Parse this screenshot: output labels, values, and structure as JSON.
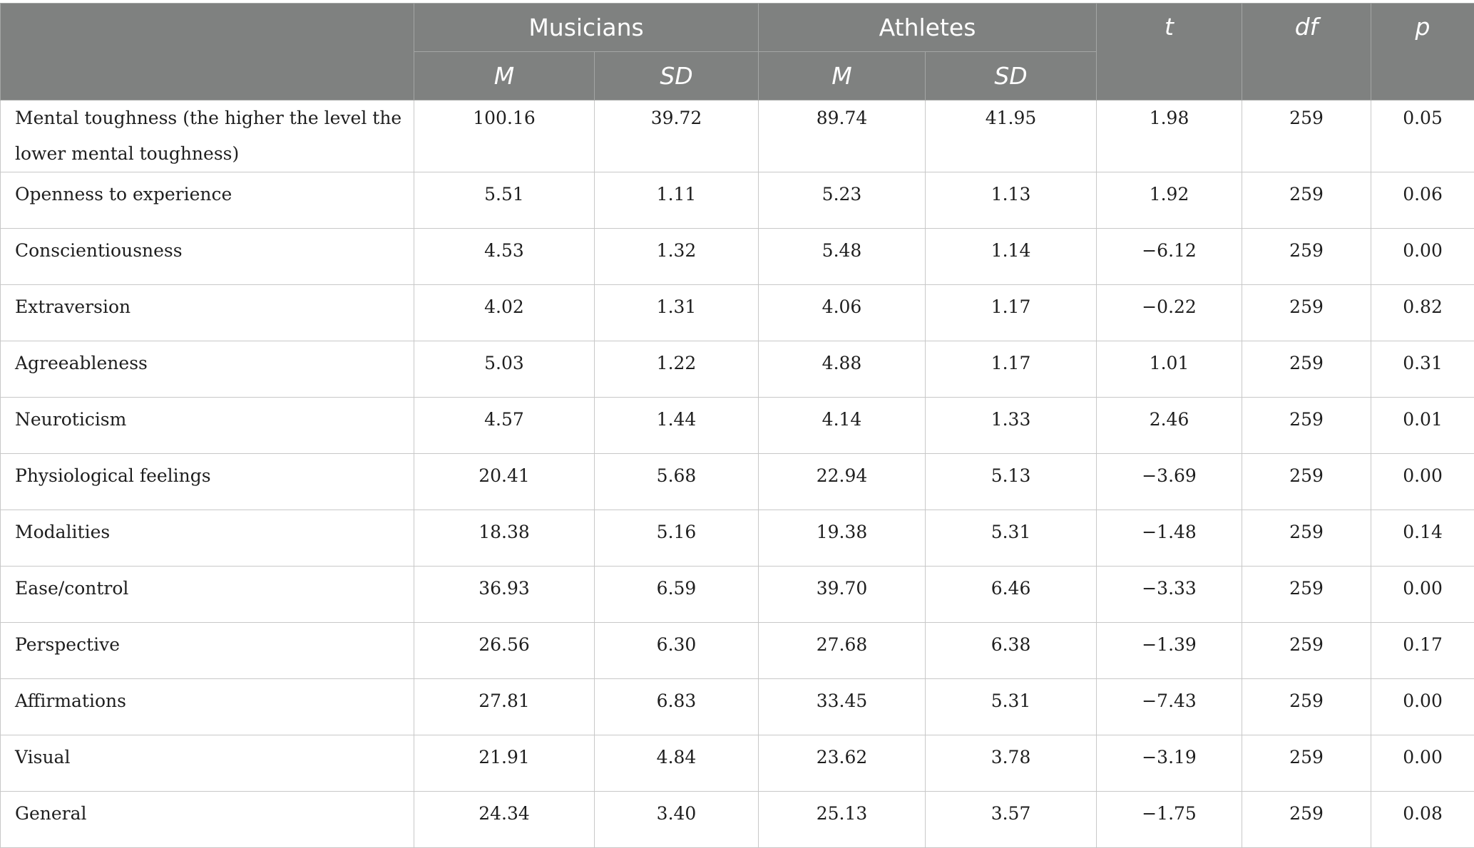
{
  "header": {
    "group_musicians": "Musicians",
    "group_athletes": "Athletes",
    "col_t": "t",
    "col_df": "df",
    "col_p": "p",
    "col_m": "M",
    "col_sd": "SD"
  },
  "rows": [
    {
      "label": "Mental toughness (the higher the level the lower mental toughness)",
      "mus_m": "100.16",
      "mus_sd": "39.72",
      "ath_m": "89.74",
      "ath_sd": "41.95",
      "t": "1.98",
      "df": "259",
      "p": "0.05"
    },
    {
      "label": "Openness to experience",
      "mus_m": "5.51",
      "mus_sd": "1.11",
      "ath_m": "5.23",
      "ath_sd": "1.13",
      "t": "1.92",
      "df": "259",
      "p": "0.06"
    },
    {
      "label": "Conscientiousness",
      "mus_m": "4.53",
      "mus_sd": "1.32",
      "ath_m": "5.48",
      "ath_sd": "1.14",
      "t": "−6.12",
      "df": "259",
      "p": "0.00"
    },
    {
      "label": "Extraversion",
      "mus_m": "4.02",
      "mus_sd": "1.31",
      "ath_m": "4.06",
      "ath_sd": "1.17",
      "t": "−0.22",
      "df": "259",
      "p": "0.82"
    },
    {
      "label": "Agreeableness",
      "mus_m": "5.03",
      "mus_sd": "1.22",
      "ath_m": "4.88",
      "ath_sd": "1.17",
      "t": "1.01",
      "df": "259",
      "p": "0.31"
    },
    {
      "label": "Neuroticism",
      "mus_m": "4.57",
      "mus_sd": "1.44",
      "ath_m": "4.14",
      "ath_sd": "1.33",
      "t": "2.46",
      "df": "259",
      "p": "0.01"
    },
    {
      "label": "Physiological feelings",
      "mus_m": "20.41",
      "mus_sd": "5.68",
      "ath_m": "22.94",
      "ath_sd": "5.13",
      "t": "−3.69",
      "df": "259",
      "p": "0.00"
    },
    {
      "label": "Modalities",
      "mus_m": "18.38",
      "mus_sd": "5.16",
      "ath_m": "19.38",
      "ath_sd": "5.31",
      "t": "−1.48",
      "df": "259",
      "p": "0.14"
    },
    {
      "label": "Ease/control",
      "mus_m": "36.93",
      "mus_sd": "6.59",
      "ath_m": "39.70",
      "ath_sd": "6.46",
      "t": "−3.33",
      "df": "259",
      "p": "0.00"
    },
    {
      "label": "Perspective",
      "mus_m": "26.56",
      "mus_sd": "6.30",
      "ath_m": "27.68",
      "ath_sd": "6.38",
      "t": "−1.39",
      "df": "259",
      "p": "0.17"
    },
    {
      "label": "Affirmations",
      "mus_m": "27.81",
      "mus_sd": "6.83",
      "ath_m": "33.45",
      "ath_sd": "5.31",
      "t": "−7.43",
      "df": "259",
      "p": "0.00"
    },
    {
      "label": "Visual",
      "mus_m": "21.91",
      "mus_sd": "4.84",
      "ath_m": "23.62",
      "ath_sd": "3.78",
      "t": "−3.19",
      "df": "259",
      "p": "0.00"
    },
    {
      "label": "General",
      "mus_m": "24.34",
      "mus_sd": "3.40",
      "ath_m": "25.13",
      "ath_sd": "3.57",
      "t": "−1.75",
      "df": "259",
      "p": "0.08"
    }
  ]
}
